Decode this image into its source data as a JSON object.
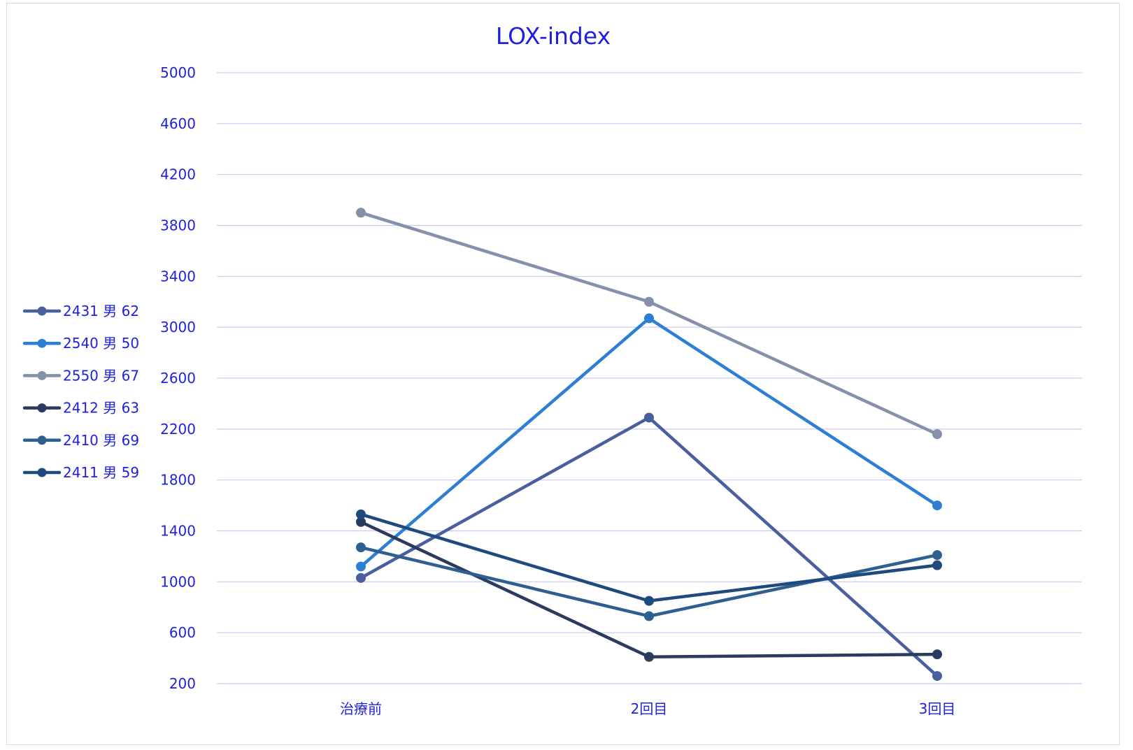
{
  "chart_data": {
    "type": "line",
    "title": "LOX-index",
    "xlabel": "",
    "ylabel": "",
    "categories": [
      "治療前",
      "2回目",
      "3回目"
    ],
    "ylim": [
      200,
      5000
    ],
    "yticks": [
      200,
      600,
      1000,
      1400,
      1800,
      2200,
      2600,
      3000,
      3400,
      3800,
      4200,
      4600,
      5000
    ],
    "grid": true,
    "legend_position": "left",
    "series": [
      {
        "name": "2431 男 62",
        "color": "#4a5fa0",
        "values": [
          1030,
          2290,
          260
        ]
      },
      {
        "name": "2540 男 50",
        "color": "#2e7fd4",
        "values": [
          1120,
          3070,
          1600
        ]
      },
      {
        "name": "2550 男 67",
        "color": "#8591aa",
        "values": [
          3900,
          3200,
          2160
        ]
      },
      {
        "name": "2412 男 63",
        "color": "#2b3a5f",
        "values": [
          1470,
          410,
          430
        ]
      },
      {
        "name": "2410 男 69",
        "color": "#2d5f8f",
        "values": [
          1270,
          730,
          1210
        ]
      },
      {
        "name": "2411 男 59",
        "color": "#1f4a7e",
        "values": [
          1530,
          850,
          1130
        ]
      }
    ]
  }
}
